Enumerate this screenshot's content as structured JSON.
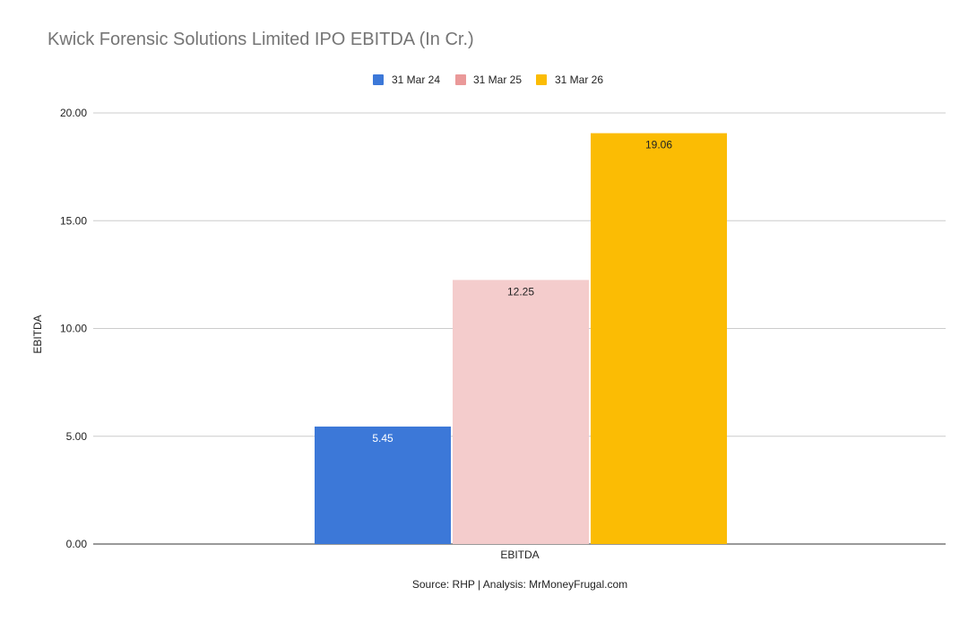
{
  "chart_data": {
    "type": "bar",
    "title": "Kwick Forensic Solutions Limited IPO EBITDA (In Cr.)",
    "categories": [
      "EBITDA"
    ],
    "series": [
      {
        "name": "31 Mar 24",
        "values": [
          5.45
        ],
        "color": "#3c78d8",
        "label_color": "#ffffff"
      },
      {
        "name": "31 Mar 25",
        "values": [
          12.25
        ],
        "color": "#f4cccc",
        "label_color": "#222222"
      },
      {
        "name": "31 Mar 26",
        "values": [
          19.06
        ],
        "color": "#fbbc04",
        "label_color": "#222222"
      }
    ],
    "legend_colors": [
      "#3c78d8",
      "#ea9999",
      "#fbbc04"
    ],
    "xlabel": "EBITDA",
    "ylabel": "EBITDA",
    "ylim": [
      0,
      20
    ],
    "yticks": [
      "0.00",
      "5.00",
      "10.00",
      "15.00",
      "20.00"
    ],
    "grid": true,
    "legend_position": "top-center",
    "source": "Source: RHP | Analysis: MrMoneyFrugal.com"
  }
}
